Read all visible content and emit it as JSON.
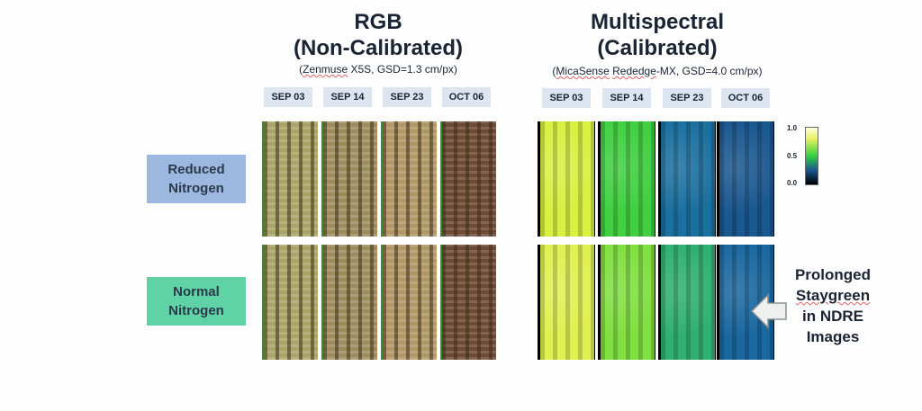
{
  "rgb": {
    "title_1": "RGB",
    "title_2": "(Non-Calibrated)",
    "subtitle_brand": "Zenmuse",
    "subtitle_rest": " X5S, GSD=1.3 cm/px)",
    "subtitle_open": "("
  },
  "ms": {
    "title_1": "Multispectral",
    "title_2": "(Calibrated)",
    "subtitle_open": "(",
    "subtitle_brand1": "MicaSense",
    "subtitle_mid": " ",
    "subtitle_brand2": "Rededge",
    "subtitle_rest": "-MX, GSD=4.0 cm/px)"
  },
  "dates": [
    "SEP 03",
    "SEP 14",
    "SEP 23",
    "OCT 06"
  ],
  "rows": [
    {
      "label_1": "Reduced",
      "label_2": "Nitrogen",
      "color": "#9cb8e0"
    },
    {
      "label_1": "Normal",
      "label_2": "Nitrogen",
      "color": "#5fd3a6"
    }
  ],
  "colorbar": {
    "max": "1.0",
    "mid": "0.5",
    "min": "0.0"
  },
  "callout": {
    "line1": "Prolonged",
    "line2": "Staygreen",
    "line3": "in NDRE",
    "line4": "Images"
  },
  "rgb_colors": [
    "#a8a468",
    "#9c8c5c",
    "#b09866",
    "#6e4a34"
  ],
  "ms_colors": [
    [
      "#d8f040",
      "#40d040",
      "#1a70a0",
      "#1a5890"
    ],
    [
      "#e0f050",
      "#80e040",
      "#30b070",
      "#1a68a0"
    ]
  ]
}
